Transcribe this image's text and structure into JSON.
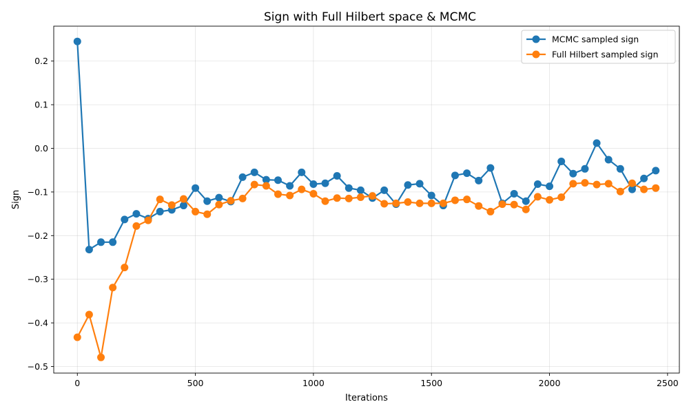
{
  "chart_data": {
    "type": "line",
    "title": "Sign with Full Hilbert space & MCMC",
    "xlabel": "Iterations",
    "ylabel": "Sign",
    "xlim": [
      -100,
      2550
    ],
    "ylim": [
      -0.515,
      0.28
    ],
    "xticks": [
      0,
      500,
      1000,
      1500,
      2000,
      2500
    ],
    "xtick_labels": [
      "0",
      "500",
      "1000",
      "1500",
      "2000",
      "2500"
    ],
    "yticks": [
      0.2,
      0.1,
      0.0,
      -0.1,
      -0.2,
      -0.3,
      -0.4,
      -0.5
    ],
    "ytick_labels": [
      "0.2",
      "0.1",
      "0.0",
      "−0.1",
      "−0.2",
      "−0.3",
      "−0.4",
      "−0.5"
    ],
    "grid": true,
    "legend_position": "top-right",
    "x": [
      0,
      50,
      100,
      150,
      200,
      250,
      300,
      350,
      400,
      450,
      500,
      550,
      600,
      650,
      700,
      750,
      800,
      850,
      900,
      950,
      1000,
      1050,
      1100,
      1150,
      1200,
      1250,
      1300,
      1350,
      1400,
      1450,
      1500,
      1550,
      1600,
      1650,
      1700,
      1750,
      1800,
      1850,
      1900,
      1950,
      2000,
      2050,
      2100,
      2150,
      2200,
      2250,
      2300,
      2350,
      2400,
      2450
    ],
    "series": [
      {
        "name": "MCMC sampled sign",
        "color": "#1f77b4",
        "values": [
          0.245,
          -0.232,
          -0.215,
          -0.215,
          -0.163,
          -0.15,
          -0.161,
          -0.145,
          -0.141,
          -0.131,
          -0.091,
          -0.121,
          -0.113,
          -0.122,
          -0.066,
          -0.055,
          -0.072,
          -0.073,
          -0.086,
          -0.055,
          -0.082,
          -0.08,
          -0.063,
          -0.091,
          -0.096,
          -0.114,
          -0.096,
          -0.128,
          -0.084,
          -0.081,
          -0.108,
          -0.131,
          -0.062,
          -0.057,
          -0.074,
          -0.045,
          -0.126,
          -0.104,
          -0.121,
          -0.082,
          -0.087,
          -0.03,
          -0.058,
          -0.047,
          0.012,
          -0.026,
          -0.047,
          -0.094,
          -0.069,
          -0.051
        ]
      },
      {
        "name": "Full Hilbert sampled sign",
        "color": "#ff7f0e",
        "values": [
          -0.433,
          -0.381,
          -0.479,
          -0.319,
          -0.273,
          -0.178,
          -0.165,
          -0.117,
          -0.13,
          -0.116,
          -0.145,
          -0.151,
          -0.129,
          -0.12,
          -0.115,
          -0.083,
          -0.086,
          -0.105,
          -0.108,
          -0.094,
          -0.104,
          -0.121,
          -0.114,
          -0.115,
          -0.112,
          -0.109,
          -0.127,
          -0.126,
          -0.123,
          -0.126,
          -0.126,
          -0.126,
          -0.119,
          -0.117,
          -0.132,
          -0.145,
          -0.128,
          -0.129,
          -0.14,
          -0.111,
          -0.118,
          -0.112,
          -0.081,
          -0.079,
          -0.083,
          -0.081,
          -0.099,
          -0.08,
          -0.094,
          -0.091
        ]
      }
    ]
  }
}
